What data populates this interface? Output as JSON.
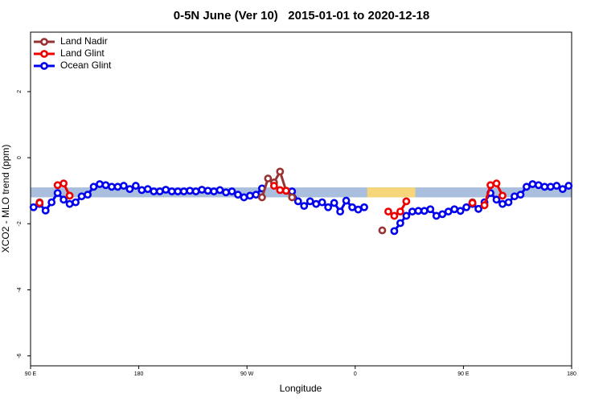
{
  "chart_data": {
    "type": "line",
    "title": "0-5N June (Ver 10)   2015-01-01 to 2020-12-18",
    "x_label": "Longitude",
    "y_label": "XCO2 - MLO trend (ppm)",
    "xlim": [
      90,
      540
    ],
    "ylim": [
      -6.3,
      3.8
    ],
    "xticks": [
      {
        "value": 90,
        "label": "90 E"
      },
      180,
      {
        "value": 270,
        "label": "90 W"
      },
      {
        "value": 360,
        "label": "0"
      },
      {
        "value": 450,
        "label": "90 E"
      },
      {
        "value": 540,
        "label": "180"
      }
    ],
    "yticks": [
      2,
      0,
      -2,
      -4,
      -6
    ],
    "band": [
      -1.2,
      -0.9
    ],
    "band_color": "#a9bfdd",
    "highlight_ranges": [
      [
        370,
        410
      ]
    ],
    "highlight_color": "#f7d57a",
    "legend": "top-left",
    "series": [
      {
        "name": "Land Nadir",
        "color": "#993333",
        "x": [
          97.5,
          102.5,
          282.5,
          287.5,
          292.5,
          297.5,
          302.5,
          307.5,
          312.5,
          382.5,
          387.5,
          457.5
        ],
        "values": [
          -1.35,
          null,
          -1.2,
          -0.63,
          -0.75,
          -0.42,
          -1.0,
          -1.2,
          null,
          -2.2,
          null,
          -1.35
        ]
      },
      {
        "name": "Land Glint",
        "color": "#ee0000",
        "x": [
          97.5,
          102.5,
          112.5,
          117.5,
          122.5,
          127.5,
          292.5,
          297.5,
          302.5,
          307.5,
          387.5,
          392.5,
          397.5,
          402.5,
          407.5,
          457.5,
          462.5,
          467.5,
          472.5,
          477.5,
          482.5
        ],
        "values": [
          -1.37,
          null,
          -0.83,
          -0.78,
          -1.15,
          null,
          -0.85,
          -0.98,
          -1.0,
          null,
          -1.63,
          -1.76,
          -1.63,
          -1.32,
          null,
          -1.37,
          null,
          -1.44,
          -0.83,
          -0.78,
          -1.15
        ]
      },
      {
        "name": "Ocean Glint",
        "color": "#0000ee",
        "x": [
          92.5,
          97.5,
          102.5,
          107.5,
          112.5,
          117.5,
          122.5,
          127.5,
          132.5,
          137.5,
          142.5,
          147.5,
          152.5,
          157.5,
          162.5,
          167.5,
          172.5,
          177.5,
          182.5,
          187.5,
          192.5,
          197.5,
          202.5,
          207.5,
          212.5,
          217.5,
          222.5,
          227.5,
          232.5,
          237.5,
          242.5,
          247.5,
          252.5,
          257.5,
          262.5,
          267.5,
          272.5,
          277.5,
          282.5,
          287.5,
          292.5,
          297.5,
          302.5,
          307.5,
          312.5,
          317.5,
          322.5,
          327.5,
          332.5,
          337.5,
          342.5,
          347.5,
          352.5,
          357.5,
          362.5,
          367.5,
          372.5,
          377.5,
          382.5,
          387.5,
          392.5,
          397.5,
          402.5,
          407.5,
          412.5,
          417.5,
          422.5,
          427.5,
          432.5,
          437.5,
          442.5,
          447.5,
          452.5,
          457.5,
          462.5,
          467.5,
          472.5,
          477.5,
          482.5,
          487.5,
          492.5,
          497.5,
          502.5,
          507.5,
          512.5,
          517.5,
          522.5,
          527.5,
          532.5,
          537.5
        ],
        "values": [
          -1.5,
          -1.4,
          -1.6,
          -1.35,
          -1.07,
          -1.27,
          -1.4,
          -1.35,
          -1.17,
          -1.12,
          -0.88,
          -0.8,
          -0.83,
          -0.88,
          -0.88,
          -0.85,
          -0.95,
          -0.85,
          -0.98,
          -0.95,
          -1.02,
          -1.02,
          -0.97,
          -1.02,
          -1.02,
          -1.02,
          -1.0,
          -1.02,
          -0.97,
          -1.0,
          -1.02,
          -0.98,
          -1.05,
          -1.02,
          -1.12,
          -1.2,
          -1.15,
          -1.12,
          -0.93,
          null,
          null,
          null,
          null,
          -1.02,
          -1.32,
          -1.46,
          -1.32,
          -1.4,
          -1.35,
          -1.5,
          -1.37,
          -1.63,
          -1.3,
          -1.5,
          -1.57,
          -1.5,
          null,
          null,
          null,
          null,
          -2.22,
          -1.98,
          -1.76,
          -1.63,
          -1.61,
          -1.61,
          -1.56,
          -1.76,
          -1.71,
          -1.63,
          -1.56,
          -1.61,
          -1.5,
          -1.4,
          -1.55,
          -1.35,
          -1.07,
          -1.27,
          -1.4,
          -1.35,
          -1.17,
          -1.12,
          -0.88,
          -0.8,
          -0.83,
          -0.88,
          -0.88,
          -0.85,
          -0.95,
          -0.85
        ]
      }
    ]
  }
}
